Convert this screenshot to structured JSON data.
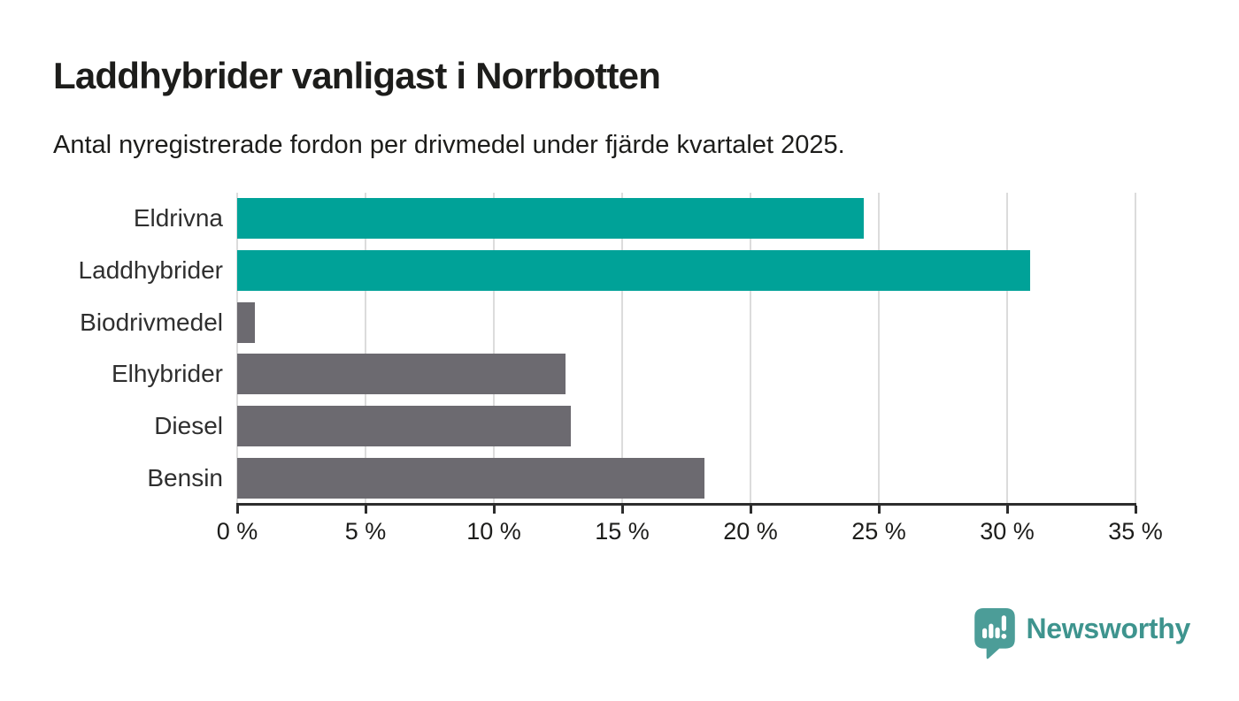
{
  "header": {
    "title": "Laddhybrider vanligast i Norrbotten",
    "subtitle": "Antal nyregistrerade fordon per drivmedel under fjärde kvartalet 2025."
  },
  "chart_data": {
    "type": "bar",
    "orientation": "horizontal",
    "title": "Laddhybrider vanligast i Norrbotten",
    "subtitle": "Antal nyregistrerade fordon per drivmedel under fjärde kvartalet 2025.",
    "categories": [
      "Eldrivna",
      "Laddhybrider",
      "Biodrivmedel",
      "Elhybrider",
      "Diesel",
      "Bensin"
    ],
    "values": [
      24.4,
      30.9,
      0.7,
      12.8,
      13.0,
      18.2
    ],
    "unit": "%",
    "bar_colors": [
      "#00a298",
      "#00a298",
      "#6c6a70",
      "#6c6a70",
      "#6c6a70",
      "#6c6a70"
    ],
    "xlabel": "",
    "ylabel": "",
    "xlim": [
      0,
      35
    ],
    "x_ticks": [
      0,
      5,
      10,
      15,
      20,
      25,
      30,
      35
    ],
    "x_tick_labels": [
      "0 %",
      "5 %",
      "10 %",
      "15 %",
      "20 %",
      "25 %",
      "30 %",
      "35 %"
    ],
    "grid": "vertical",
    "legend": "none"
  },
  "colors": {
    "accent_teal": "#00a298",
    "muted_gray": "#6c6a70",
    "gridline": "#dcdcdc",
    "axis": "#2d2d2d",
    "brand_teal": "#3e948e",
    "brand_icon_teal": "#4c9d98"
  },
  "footer": {
    "brand": "Newsworthy"
  }
}
